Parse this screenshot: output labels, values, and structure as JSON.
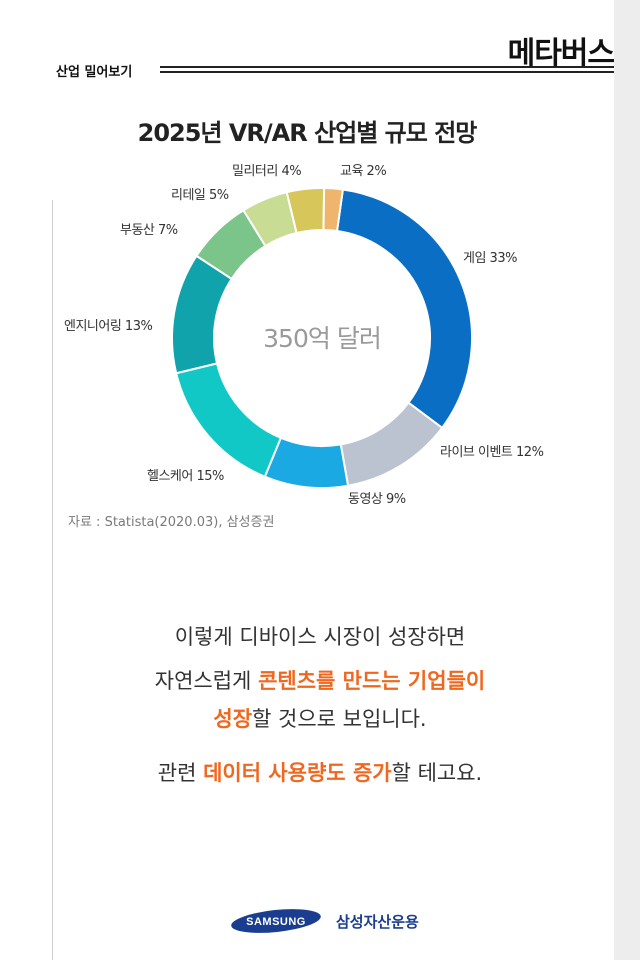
{
  "header": {
    "section_label": "산업 밀어보기",
    "brand_title": "메타버스"
  },
  "chart_data": {
    "type": "pie",
    "title": "2025년 VR/AR 산업별 규모 전망",
    "center_label": "350억 달러",
    "categories": [
      "게임",
      "라이브 이벤트",
      "동영상",
      "헬스케어",
      "엔지니어링",
      "부동산",
      "리테일",
      "밀리터리",
      "교육"
    ],
    "values": [
      33,
      12,
      9,
      15,
      13,
      7,
      5,
      4,
      2
    ],
    "labels": [
      "게임 33%",
      "라이브 이벤트 12%",
      "동영상 9%",
      "헬스케어 15%",
      "엔지니어링 13%",
      "부동산 7%",
      "리테일 5%",
      "밀리터리 4%",
      "교육 2%"
    ],
    "colors": [
      "#0a6fc4",
      "#bcc3d0",
      "#1aa9e2",
      "#11c8c6",
      "#10a3ac",
      "#7cc58a",
      "#c9dc94",
      "#d7c65a",
      "#f0b56d"
    ],
    "source": "자료 : Statista(2020.03), 삼성증권"
  },
  "body": {
    "line1": "이렇게 디바이스 시장이 성장하면",
    "line2_pre": "자연스럽게 ",
    "line2_hl": "콘텐츠를 만드는 기업들이",
    "line3_hl": "성장",
    "line3_post": "할 것으로 보입니다.",
    "line4_pre": "관련 ",
    "line4_hl": "데이터 사용량도 증가",
    "line4_post": "할 테고요."
  },
  "footer": {
    "samsung_logo_text": "SAMSUNG",
    "asset_name": "삼성자산운용"
  }
}
